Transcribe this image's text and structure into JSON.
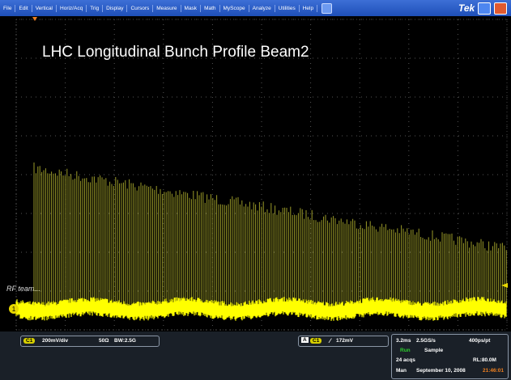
{
  "menu": [
    "File",
    "Edit",
    "Vertical",
    "Horiz/Acq",
    "Trig",
    "Display",
    "Cursors",
    "Measure",
    "Mask",
    "Math",
    "MyScope",
    "Analyze",
    "Utilities",
    "Help"
  ],
  "brand": "Tek",
  "screen": {
    "title": "LHC Longitudinal Bunch Profile Beam2",
    "annotation": "RF team...",
    "channel_marker": "1"
  },
  "channel": {
    "badge": "C1",
    "scale": "200mV/div",
    "impedance": "50Ω",
    "bandwidth": "BW:2.5G"
  },
  "trigger": {
    "source": "A",
    "channel": "C1",
    "level": "172mV"
  },
  "acquisition": {
    "time_scale": "3.2ms",
    "sample_rate": "2.5GS/s",
    "resolution": "400ps/pt",
    "state": "Run",
    "mode": "Sample",
    "count": "24 acqs",
    "record_length": "RL:80.0M",
    "trigger_mode": "Man",
    "date": "September 10, 2008",
    "time": "21:46:01"
  }
}
